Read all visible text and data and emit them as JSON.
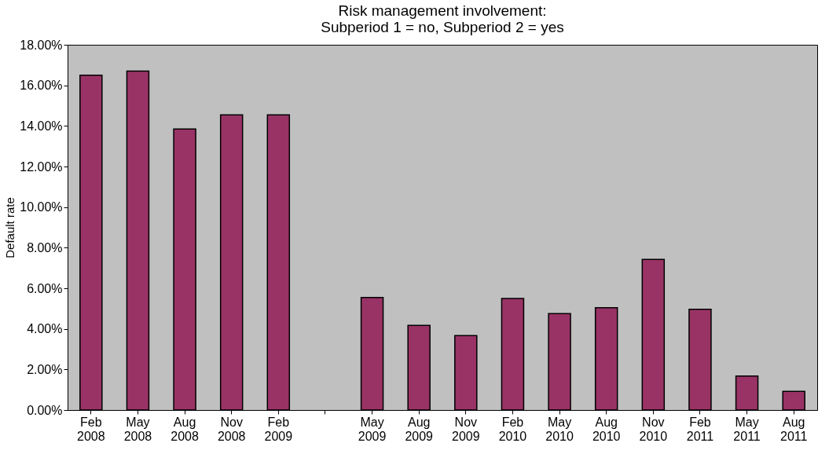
{
  "chart_data": {
    "type": "bar",
    "title": "Risk management  involvement:\nSubperiod 1 = no, Subperiod 2 = yes",
    "ylabel": "Default rate",
    "categories": [
      "Feb 2008",
      "May 2008",
      "Aug 2008",
      "Nov 2008",
      "Feb 2009",
      null,
      "May 2009",
      "Aug 2009",
      "Nov 2009",
      "Feb 2010",
      "May 2010",
      "Aug 2010",
      "Nov 2010",
      "Feb 2011",
      "May 2011",
      "Aug 2011"
    ],
    "values": [
      16.5,
      16.7,
      13.85,
      14.55,
      14.55,
      null,
      5.55,
      4.17,
      3.67,
      5.5,
      4.75,
      5.04,
      7.42,
      4.96,
      1.67,
      0.92
    ],
    "color": "#993366",
    "ylim": [
      0,
      18
    ],
    "yticks": [
      {
        "value": 0,
        "label": "0.00%"
      },
      {
        "value": 2,
        "label": "2.00%"
      },
      {
        "value": 4,
        "label": "4.00%"
      },
      {
        "value": 6,
        "label": "6.00%"
      },
      {
        "value": 8,
        "label": "8.00%"
      },
      {
        "value": 10,
        "label": "10.00%"
      },
      {
        "value": 12,
        "label": "12.00%"
      },
      {
        "value": 14,
        "label": "14.00%"
      },
      {
        "value": 16,
        "label": "16.00%"
      },
      {
        "value": 18,
        "label": "18.00%"
      }
    ],
    "grid": false
  }
}
